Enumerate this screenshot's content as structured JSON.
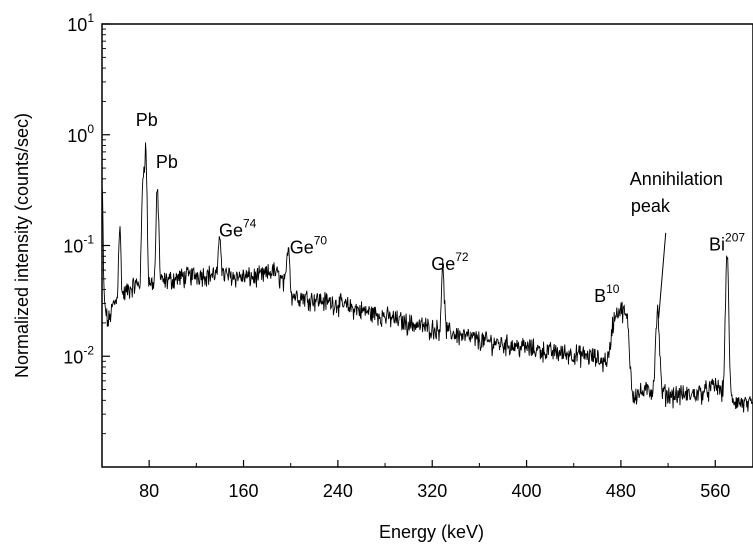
{
  "chart_data": {
    "type": "line",
    "title": "",
    "xlabel": "Energy (keV)",
    "ylabel": "Normalized intensity (counts/sec)",
    "xlim": [
      40,
      592
    ],
    "ylim": [
      0.001,
      10
    ],
    "yscale": "log",
    "grid": false,
    "legend": "none",
    "x_ticks": [
      {
        "value": 80,
        "label": "80"
      },
      {
        "value": 160,
        "label": "160"
      },
      {
        "value": 240,
        "label": "240"
      },
      {
        "value": 320,
        "label": "320"
      },
      {
        "value": 400,
        "label": "400"
      },
      {
        "value": 480,
        "label": "480"
      },
      {
        "value": 560,
        "label": "560"
      }
    ],
    "y_ticks": [
      {
        "value": 10,
        "base": "10",
        "exp": "1"
      },
      {
        "value": 1,
        "base": "10",
        "exp": "0"
      },
      {
        "value": 0.1,
        "base": "10",
        "exp": "-1"
      },
      {
        "value": 0.01,
        "base": "10",
        "exp": "-2"
      }
    ],
    "baseline": [
      [
        40,
        0.05
      ],
      [
        42,
        0.03
      ],
      [
        45,
        0.02
      ],
      [
        50,
        0.03
      ],
      [
        55,
        0.033
      ],
      [
        60,
        0.038
      ],
      [
        65,
        0.042
      ],
      [
        70,
        0.045
      ],
      [
        80,
        0.046
      ],
      [
        90,
        0.047
      ],
      [
        100,
        0.05
      ],
      [
        120,
        0.055
      ],
      [
        140,
        0.055
      ],
      [
        160,
        0.052
      ],
      [
        170,
        0.052
      ],
      [
        180,
        0.055
      ],
      [
        185,
        0.06
      ],
      [
        190,
        0.053
      ],
      [
        195,
        0.045
      ],
      [
        200,
        0.036
      ],
      [
        220,
        0.033
      ],
      [
        240,
        0.03
      ],
      [
        260,
        0.026
      ],
      [
        280,
        0.023
      ],
      [
        300,
        0.02
      ],
      [
        320,
        0.018
      ],
      [
        340,
        0.016
      ],
      [
        360,
        0.014
      ],
      [
        380,
        0.013
      ],
      [
        400,
        0.012
      ],
      [
        420,
        0.011
      ],
      [
        440,
        0.0105
      ],
      [
        455,
        0.01
      ],
      [
        465,
        0.009
      ],
      [
        470,
        0.01
      ],
      [
        473,
        0.02
      ],
      [
        477,
        0.026
      ],
      [
        482,
        0.026
      ],
      [
        486,
        0.02
      ],
      [
        488,
        0.008
      ],
      [
        490,
        0.0045
      ],
      [
        500,
        0.0048
      ],
      [
        508,
        0.005
      ],
      [
        520,
        0.0045
      ],
      [
        540,
        0.0045
      ],
      [
        555,
        0.005
      ],
      [
        560,
        0.0055
      ],
      [
        575,
        0.004
      ],
      [
        592,
        0.0035
      ]
    ],
    "peaks": [
      {
        "x": 40,
        "y": 0.28,
        "w": 0.6
      },
      {
        "x": 55,
        "y": 0.11,
        "w": 0.8
      },
      {
        "x": 75,
        "y": 0.4,
        "w": 0.9
      },
      {
        "x": 77,
        "y": 0.67,
        "w": 0.8
      },
      {
        "x": 87,
        "y": 0.26,
        "w": 0.9
      },
      {
        "x": 140,
        "y": 0.07,
        "w": 0.9
      },
      {
        "x": 198,
        "y": 0.065,
        "w": 1.0
      },
      {
        "x": 329,
        "y": 0.045,
        "w": 1.0
      },
      {
        "x": 511,
        "y": 0.02,
        "w": 1.3
      },
      {
        "x": 570,
        "y": 0.07,
        "w": 1.0
      }
    ],
    "annotations": [
      {
        "id": "pb1",
        "text": "Pb",
        "sup": "",
        "x": 78,
        "y": 1.2
      },
      {
        "id": "pb2",
        "text": "Pb",
        "sup": "",
        "x": 95,
        "y": 0.5
      },
      {
        "id": "ge74",
        "text": "Ge",
        "sup": "74",
        "x": 155,
        "y": 0.12
      },
      {
        "id": "ge70",
        "text": "Ge",
        "sup": "70",
        "x": 215,
        "y": 0.085
      },
      {
        "id": "ge72",
        "text": "Ge",
        "sup": "72",
        "x": 335,
        "y": 0.06
      },
      {
        "id": "b10",
        "text": "B",
        "sup": "10",
        "x": 468,
        "y": 0.031
      },
      {
        "id": "ann1",
        "text": "Annihilation",
        "sup": "",
        "x": 527,
        "y": 0.35
      },
      {
        "id": "ann2",
        "text": "peak",
        "sup": "",
        "x": 505,
        "y": 0.2
      },
      {
        "id": "bi207",
        "text": "Bi",
        "sup": "207",
        "x": 570,
        "y": 0.09
      }
    ],
    "pointer": {
      "from": [
        518,
        0.13
      ],
      "to": [
        512,
        0.022
      ]
    }
  }
}
